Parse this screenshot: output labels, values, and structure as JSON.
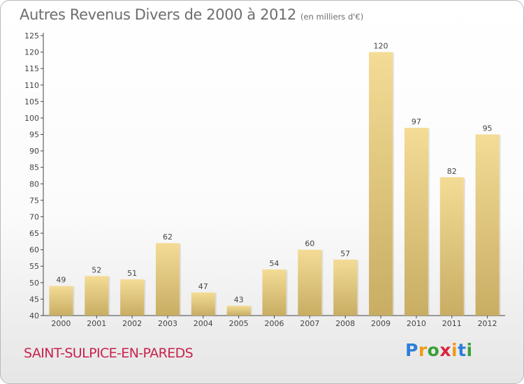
{
  "header": {
    "title": "Autres Revenus Divers de 2000 à 2012",
    "subtitle": "(en milliers d'€)"
  },
  "footer": {
    "commune": "SAINT-SULPICE-EN-PAREDS"
  },
  "logo": {
    "letters": [
      "P",
      "r",
      "o",
      "x",
      "i",
      "t",
      "i"
    ],
    "colors": [
      "#2f7fd8",
      "#f09a1a",
      "#3aa03a",
      "#d8263f",
      "#f09a1a",
      "#2f7fd8",
      "#3aa03a"
    ]
  },
  "chart_data": {
    "type": "bar",
    "categories": [
      "2000",
      "2001",
      "2002",
      "2003",
      "2004",
      "2005",
      "2006",
      "2007",
      "2008",
      "2009",
      "2010",
      "2011",
      "2012"
    ],
    "values": [
      49,
      52,
      51,
      62,
      47,
      43,
      54,
      60,
      57,
      120,
      97,
      82,
      95
    ],
    "ylim": [
      40,
      125
    ],
    "yticks": [
      "40",
      "45",
      "50",
      "55",
      "60",
      "65",
      "70",
      "75",
      "80",
      "85",
      "90",
      "95",
      "100",
      "105",
      "110",
      "115",
      "120",
      "125"
    ],
    "grid": false,
    "legend": "none",
    "bar_color_top": "#f4dc96",
    "bar_color_bottom": "#c8ad63"
  }
}
